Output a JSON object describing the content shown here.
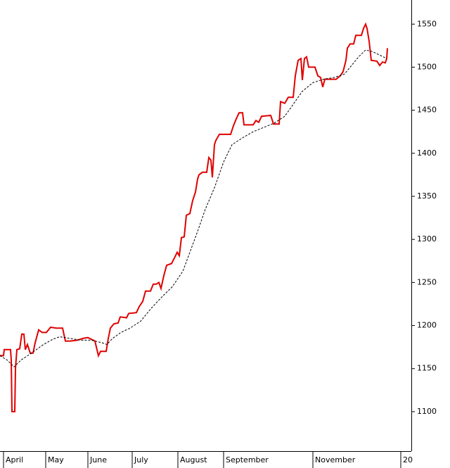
{
  "chart_data": {
    "type": "line",
    "xlim": [
      0,
      585
    ],
    "ylim": [
      1055,
      1578
    ],
    "xticks": [
      {
        "value": 5,
        "label": "April"
      },
      {
        "value": 65,
        "label": "May"
      },
      {
        "value": 125,
        "label": "June"
      },
      {
        "value": 188,
        "label": "July"
      },
      {
        "value": 253,
        "label": "August"
      },
      {
        "value": 318,
        "label": "September"
      },
      {
        "value": 445,
        "label": "November"
      },
      {
        "value": 570,
        "label": "20"
      }
    ],
    "yticks": [
      1100,
      1150,
      1200,
      1250,
      1300,
      1350,
      1400,
      1450,
      1500,
      1550
    ],
    "series": [
      {
        "color": "#e00000",
        "style": "solid",
        "x": [
          0,
          5,
          6,
          15,
          16,
          17,
          21,
          22,
          24,
          28,
          31,
          34,
          36,
          39,
          43,
          47,
          50,
          55,
          60,
          66,
          72,
          80,
          89,
          93,
          100,
          110,
          118,
          125,
          130,
          135,
          140,
          143,
          151,
          154,
          157,
          162,
          168,
          171,
          180,
          183,
          194,
          198,
          203,
          207,
          214,
          218,
          222,
          226,
          229,
          233,
          237,
          244,
          249,
          252,
          255,
          258,
          262,
          265,
          270,
          274,
          278,
          281,
          283,
          288,
          294,
          297,
          300,
          302,
          305,
          307,
          312,
          320,
          328,
          332,
          336,
          340,
          345,
          347,
          360,
          364,
          368,
          372,
          385,
          389,
          397,
          399,
          405,
          410,
          417,
          420,
          424,
          428,
          430,
          433,
          436,
          439,
          448,
          452,
          456,
          459,
          462,
          478,
          484,
          488,
          492,
          494,
          498,
          503,
          506,
          514,
          517,
          520,
          522,
          525,
          528,
          536,
          540,
          544,
          548,
          550,
          551
        ],
        "values": [
          1165,
          1165,
          1172,
          1172,
          1160,
          1100,
          1100,
          1150,
          1172,
          1173,
          1190,
          1190,
          1172,
          1178,
          1168,
          1168,
          1180,
          1195,
          1192,
          1192,
          1198,
          1197,
          1197,
          1182,
          1182,
          1183,
          1185,
          1186,
          1184,
          1182,
          1165,
          1170,
          1170,
          1185,
          1197,
          1202,
          1203,
          1210,
          1209,
          1214,
          1215,
          1222,
          1228,
          1240,
          1240,
          1248,
          1248,
          1250,
          1243,
          1258,
          1270,
          1272,
          1280,
          1285,
          1281,
          1302,
          1303,
          1328,
          1330,
          1345,
          1355,
          1370,
          1375,
          1378,
          1378,
          1395,
          1392,
          1372,
          1410,
          1415,
          1422,
          1422,
          1422,
          1432,
          1440,
          1447,
          1447,
          1433,
          1433,
          1438,
          1436,
          1443,
          1444,
          1434,
          1434,
          1460,
          1458,
          1465,
          1465,
          1490,
          1508,
          1510,
          1485,
          1510,
          1512,
          1500,
          1500,
          1490,
          1488,
          1477,
          1486,
          1486,
          1490,
          1495,
          1508,
          1522,
          1527,
          1527,
          1537,
          1537,
          1545,
          1550,
          1545,
          1530,
          1508,
          1507,
          1502,
          1506,
          1505,
          1510,
          1522
        ]
      },
      {
        "color": "#000000",
        "style": "dashed",
        "x": [
          0,
          10,
          20,
          30,
          45,
          60,
          75,
          85,
          100,
          115,
          130,
          145,
          152,
          160,
          172,
          185,
          200,
          215,
          230,
          245,
          260,
          270,
          280,
          292,
          305,
          318,
          330,
          345,
          360,
          375,
          390,
          405,
          418,
          430,
          445,
          460,
          475,
          490,
          500,
          510,
          520,
          530,
          540,
          550
        ],
        "values": [
          1165,
          1160,
          1152,
          1160,
          1168,
          1177,
          1184,
          1187,
          1185,
          1183,
          1183,
          1180,
          1178,
          1185,
          1192,
          1197,
          1205,
          1220,
          1233,
          1245,
          1263,
          1285,
          1307,
          1335,
          1360,
          1390,
          1410,
          1418,
          1425,
          1430,
          1435,
          1443,
          1458,
          1472,
          1482,
          1486,
          1488,
          1492,
          1502,
          1512,
          1520,
          1518,
          1514,
          1510
        ]
      }
    ]
  }
}
